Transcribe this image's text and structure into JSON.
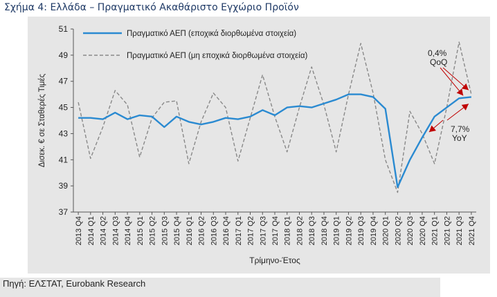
{
  "figure": {
    "title": "Σχήμα 4: Ελλάδα – Πραγματικό Ακαθάριστο Εγχώριο Προϊόν",
    "source": "Πηγή: ΕΛΣΤΑΤ, Eurobank Research"
  },
  "colors": {
    "panel_bg": "#e6e6e6",
    "sa_series": "#2a8ad1",
    "nsa_series": "#888888",
    "annotation": "#c00000",
    "title": "#1f3a66"
  },
  "chart_data": {
    "type": "line",
    "title": "",
    "xlabel": "Τρίμηνο-Έτος",
    "ylabel": "Δισεκ. € σε Σταθερές Τιμές",
    "ylim": [
      37,
      51
    ],
    "yticks": [
      37,
      39,
      41,
      43,
      45,
      47,
      49,
      51
    ],
    "grid": false,
    "legend_position": "top-left",
    "categories": [
      "2013 Q4",
      "2014 Q1",
      "2014 Q2",
      "2014 Q3",
      "2014 Q4",
      "2015 Q1",
      "2015 Q2",
      "2015 Q3",
      "2015 Q4",
      "2016 Q1",
      "2016 Q2",
      "2016 Q3",
      "2016 Q4",
      "2017 Q1",
      "2017 Q2",
      "2017 Q3",
      "2017 Q4",
      "2018 Q1",
      "2018 Q2",
      "2018 Q3",
      "2018 Q4",
      "2019 Q1",
      "2019 Q2",
      "2019 Q3",
      "2019 Q4",
      "2020 Q1",
      "2020 Q2",
      "2020 Q3",
      "2020 Q4",
      "2021 Q1",
      "2021 Q2",
      "2021 Q3",
      "2021 Q4"
    ],
    "series": [
      {
        "name": "Πραγματικό ΑΕΠ (εποχικά διορθωμένα στοιχεία)",
        "style": "solid",
        "color": "#2a8ad1",
        "values": [
          44.2,
          44.2,
          44.1,
          44.6,
          44.1,
          44.4,
          44.3,
          43.5,
          44.3,
          43.9,
          43.7,
          43.9,
          44.2,
          44.1,
          44.3,
          44.8,
          44.4,
          45.0,
          45.1,
          45.0,
          45.3,
          45.6,
          46.0,
          46.0,
          45.8,
          44.9,
          38.9,
          41.0,
          42.7,
          44.3,
          45.0,
          45.7,
          45.8
        ]
      },
      {
        "name": "Πραγματικό ΑΕΠ (μη εποχικά διορθωμένα στοιχεία)",
        "style": "dashed",
        "color": "#888888",
        "values": [
          45.4,
          41.1,
          43.5,
          46.3,
          45.2,
          41.2,
          44.2,
          45.4,
          45.5,
          40.7,
          43.9,
          46.1,
          45.0,
          40.9,
          44.2,
          47.5,
          44.3,
          41.6,
          45.0,
          48.1,
          45.2,
          41.6,
          46.0,
          49.9,
          46.1,
          41.0,
          38.5,
          44.7,
          43.0,
          40.7,
          45.0,
          50.0,
          46.0
        ]
      }
    ],
    "annotations": [
      {
        "text_lines": [
          "0,4%",
          "QoQ"
        ],
        "color": "#c00000"
      },
      {
        "text_lines": [
          "7,7%",
          "YoY"
        ],
        "color": "#c00000"
      }
    ]
  }
}
